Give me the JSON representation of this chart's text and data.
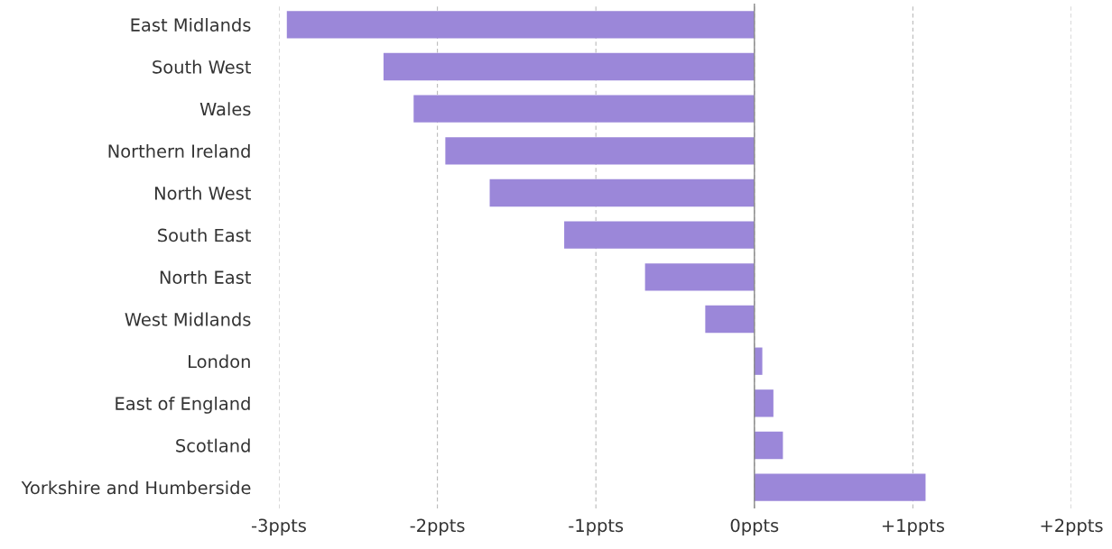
{
  "chart_data": {
    "type": "bar",
    "orientation": "horizontal",
    "categories": [
      "East Midlands",
      "South West",
      "Wales",
      "Northern Ireland",
      "North West",
      "South East",
      "North East",
      "West Midlands",
      "London",
      "East of England",
      "Scotland",
      "Yorkshire and Humberside"
    ],
    "values": [
      -2.95,
      -2.34,
      -2.15,
      -1.95,
      -1.67,
      -1.2,
      -0.69,
      -0.31,
      0.05,
      0.12,
      0.18,
      1.08
    ],
    "color": "#9b87d9",
    "xlim": [
      -3,
      2
    ],
    "xticks": [
      {
        "value": -3,
        "label": "-3ppts"
      },
      {
        "value": -2,
        "label": "-2ppts"
      },
      {
        "value": -1,
        "label": "-1ppts"
      },
      {
        "value": 0,
        "label": "0ppts"
      },
      {
        "value": 1,
        "label": "+1ppts"
      },
      {
        "value": 2,
        "label": "+2ppts"
      }
    ],
    "grid": "x",
    "ref_lines": [
      {
        "axis": "x",
        "value": 0,
        "color": "#888888",
        "line_style": "solid"
      }
    ]
  }
}
